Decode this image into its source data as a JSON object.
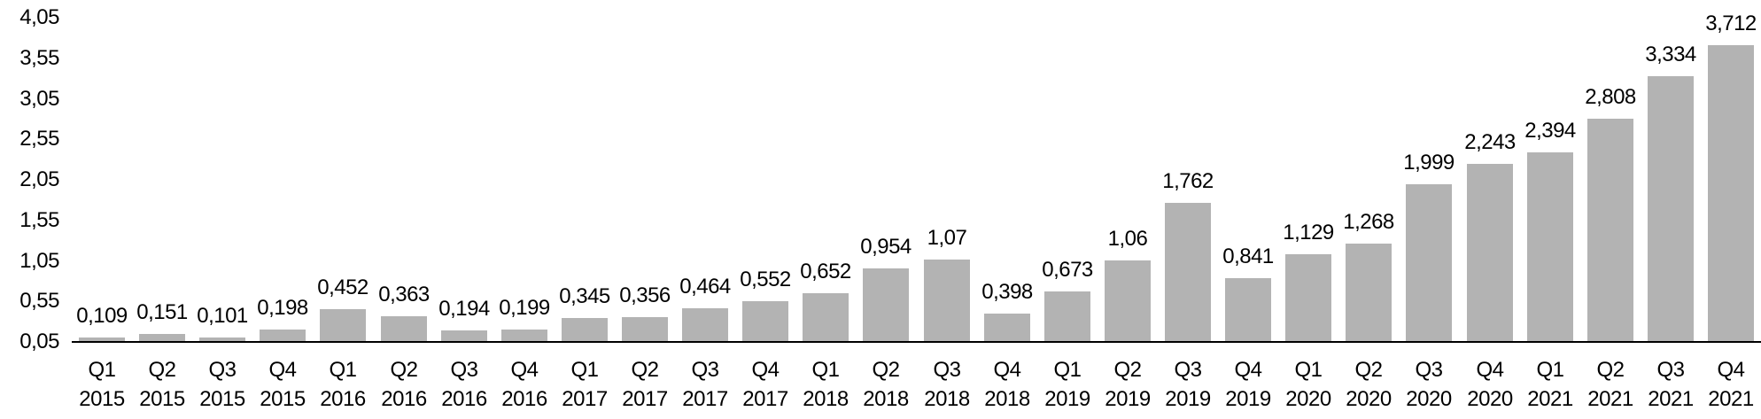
{
  "chart_data": {
    "type": "bar",
    "categories": [
      {
        "quarter": "Q1",
        "year": "2015"
      },
      {
        "quarter": "Q2",
        "year": "2015"
      },
      {
        "quarter": "Q3",
        "year": "2015"
      },
      {
        "quarter": "Q4",
        "year": "2015"
      },
      {
        "quarter": "Q1",
        "year": "2016"
      },
      {
        "quarter": "Q2",
        "year": "2016"
      },
      {
        "quarter": "Q3",
        "year": "2016"
      },
      {
        "quarter": "Q4",
        "year": "2016"
      },
      {
        "quarter": "Q1",
        "year": "2017"
      },
      {
        "quarter": "Q2",
        "year": "2017"
      },
      {
        "quarter": "Q3",
        "year": "2017"
      },
      {
        "quarter": "Q4",
        "year": "2017"
      },
      {
        "quarter": "Q1",
        "year": "2018"
      },
      {
        "quarter": "Q2",
        "year": "2018"
      },
      {
        "quarter": "Q3",
        "year": "2018"
      },
      {
        "quarter": "Q4",
        "year": "2018"
      },
      {
        "quarter": "Q1",
        "year": "2019"
      },
      {
        "quarter": "Q2",
        "year": "2019"
      },
      {
        "quarter": "Q3",
        "year": "2019"
      },
      {
        "quarter": "Q4",
        "year": "2019"
      },
      {
        "quarter": "Q1",
        "year": "2020"
      },
      {
        "quarter": "Q2",
        "year": "2020"
      },
      {
        "quarter": "Q3",
        "year": "2020"
      },
      {
        "quarter": "Q4",
        "year": "2020"
      },
      {
        "quarter": "Q1",
        "year": "2021"
      },
      {
        "quarter": "Q2",
        "year": "2021"
      },
      {
        "quarter": "Q3",
        "year": "2021"
      },
      {
        "quarter": "Q4",
        "year": "2021"
      }
    ],
    "values": [
      0.109,
      0.151,
      0.101,
      0.198,
      0.452,
      0.363,
      0.194,
      0.199,
      0.345,
      0.356,
      0.464,
      0.552,
      0.652,
      0.954,
      1.07,
      0.398,
      0.673,
      1.06,
      1.762,
      0.841,
      1.129,
      1.268,
      1.999,
      2.243,
      2.394,
      2.808,
      3.334,
      3.712
    ],
    "value_labels": [
      "0,109",
      "0,151",
      "0,101",
      "0,198",
      "0,452",
      "0,363",
      "0,194",
      "0,199",
      "0,345",
      "0,356",
      "0,464",
      "0,552",
      "0,652",
      "0,954",
      "1,07",
      "0,398",
      "0,673",
      "1,06",
      "1,762",
      "0,841",
      "1,129",
      "1,268",
      "1,999",
      "2,243",
      "2,394",
      "2,808",
      "3,334",
      "3,712"
    ],
    "y_axis": {
      "min": 0.05,
      "max": 4.05,
      "ticks": [
        {
          "value": 4.05,
          "label": "4,05"
        },
        {
          "value": 3.55,
          "label": "3,55"
        },
        {
          "value": 3.05,
          "label": "3,05"
        },
        {
          "value": 2.55,
          "label": "2,55"
        },
        {
          "value": 2.05,
          "label": "2,05"
        },
        {
          "value": 1.55,
          "label": "1,55"
        },
        {
          "value": 1.05,
          "label": "1,05"
        },
        {
          "value": 0.55,
          "label": "0,55"
        },
        {
          "value": 0.05,
          "label": "0,05"
        }
      ]
    },
    "grid": false,
    "legend": false,
    "colors": {
      "bar_fill": "#b3b3b3",
      "axis_line": "#000000",
      "text": "#000000",
      "background": "#ffffff"
    }
  }
}
